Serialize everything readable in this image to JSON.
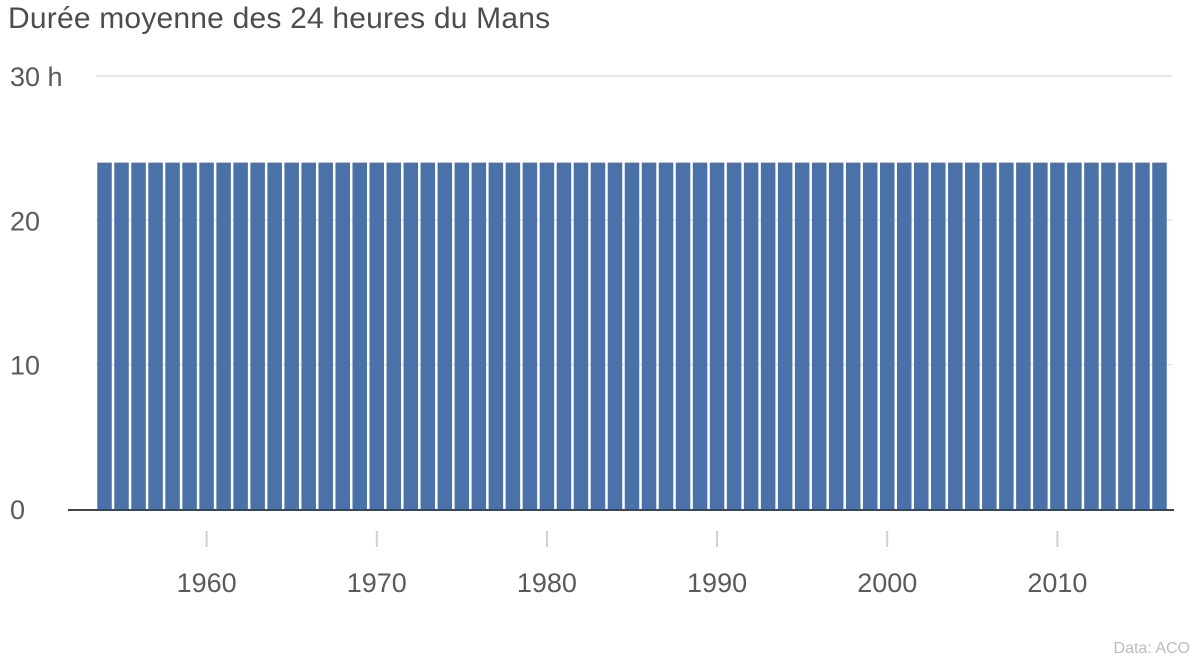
{
  "chart_data": {
    "type": "bar",
    "title": "Durée moyenne des 24 heures du Mans",
    "source": "Data: ACO",
    "y_unit_label": "30 h",
    "ylim": [
      0,
      30
    ],
    "y_ticks": [
      {
        "value": 0,
        "label": "0"
      },
      {
        "value": 10,
        "label": "10"
      },
      {
        "value": 20,
        "label": "20"
      },
      {
        "value": 30,
        "label": "30 h"
      }
    ],
    "x_ticks": [
      {
        "value": 1960,
        "label": "1960"
      },
      {
        "value": 1970,
        "label": "1970"
      },
      {
        "value": 1980,
        "label": "1980"
      },
      {
        "value": 1990,
        "label": "1990"
      },
      {
        "value": 2000,
        "label": "2000"
      },
      {
        "value": 2010,
        "label": "2010"
      }
    ],
    "categories": [
      1954,
      1955,
      1956,
      1957,
      1958,
      1959,
      1960,
      1961,
      1962,
      1963,
      1964,
      1965,
      1966,
      1967,
      1968,
      1969,
      1970,
      1971,
      1972,
      1973,
      1974,
      1975,
      1976,
      1977,
      1978,
      1979,
      1980,
      1981,
      1982,
      1983,
      1984,
      1985,
      1986,
      1987,
      1988,
      1989,
      1990,
      1991,
      1992,
      1993,
      1994,
      1995,
      1996,
      1997,
      1998,
      1999,
      2000,
      2001,
      2002,
      2003,
      2004,
      2005,
      2006,
      2007,
      2008,
      2009,
      2010,
      2011,
      2012,
      2013,
      2014,
      2015,
      2016
    ],
    "values": [
      24,
      24,
      24,
      24,
      24,
      24,
      24,
      24,
      24,
      24,
      24,
      24,
      24,
      24,
      24,
      24,
      24,
      24,
      24,
      24,
      24,
      24,
      24,
      24,
      24,
      24,
      24,
      24,
      24,
      24,
      24,
      24,
      24,
      24,
      24,
      24,
      24,
      24,
      24,
      24,
      24,
      24,
      24,
      24,
      24,
      24,
      24,
      24,
      24,
      24,
      24,
      24,
      24,
      24,
      24,
      24,
      24,
      24,
      24,
      24,
      24,
      24,
      24
    ],
    "bar_color": "#4a72a8",
    "grid": true
  }
}
